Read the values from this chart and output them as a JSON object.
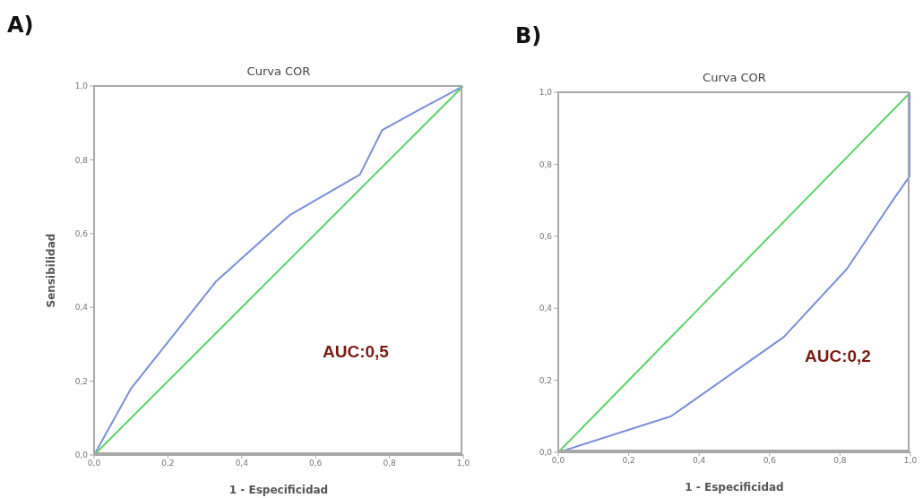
{
  "chart_data": [
    {
      "type": "line",
      "title": "Curva COR",
      "xlabel": "1 - Especificidad",
      "ylabel": "Sensibilidad",
      "annotations": [
        "A)",
        "AUC:0,5"
      ],
      "xlim": [
        0,
        1
      ],
      "ylim": [
        0,
        1
      ],
      "xticks": [
        {
          "value": 0,
          "label": "0,0"
        },
        {
          "value": 0.2,
          "label": "0,2"
        },
        {
          "value": 0.4,
          "label": "0,4"
        },
        {
          "value": 0.6,
          "label": "0,6"
        },
        {
          "value": 0.8,
          "label": "0,8"
        },
        {
          "value": 1,
          "label": "1,0"
        }
      ],
      "yticks": [
        {
          "value": 0,
          "label": "0,0"
        },
        {
          "value": 0.2,
          "label": "0,2"
        },
        {
          "value": 0.4,
          "label": "0,4"
        },
        {
          "value": 0.6,
          "label": "0,6"
        },
        {
          "value": 0.8,
          "label": "0,8"
        },
        {
          "value": 1,
          "label": "1,0"
        }
      ],
      "grid": false,
      "line_style": "solid",
      "series": [
        {
          "color": "#7b8fd8",
          "x": [
            0,
            0.1,
            0.33,
            0.53,
            0.72,
            0.78,
            0.87,
            1
          ],
          "values": [
            0,
            0.18,
            0.47,
            0.65,
            0.76,
            0.88,
            0.93,
            1
          ]
        },
        {
          "color": "#5fd36a",
          "x": [
            0,
            1
          ],
          "values": [
            0,
            1
          ]
        }
      ]
    },
    {
      "type": "line",
      "title": "Curva COR",
      "xlabel": "1 - Especificidad",
      "annotations": [
        "B)",
        "AUC:0,2"
      ],
      "xlim": [
        0,
        1
      ],
      "ylim": [
        0,
        1
      ],
      "xticks": [
        {
          "value": 0,
          "label": "0,0"
        },
        {
          "value": 0.2,
          "label": "0,2"
        },
        {
          "value": 0.4,
          "label": "0,4"
        },
        {
          "value": 0.6,
          "label": "0,6"
        },
        {
          "value": 0.8,
          "label": "0,8"
        },
        {
          "value": 1,
          "label": "1,0"
        }
      ],
      "yticks": [
        {
          "value": 0,
          "label": "0,0"
        },
        {
          "value": 0.2,
          "label": "0,2"
        },
        {
          "value": 0.4,
          "label": "0,4"
        },
        {
          "value": 0.6,
          "label": "0,6"
        },
        {
          "value": 0.8,
          "label": "0,8"
        },
        {
          "value": 1,
          "label": "1,0"
        }
      ],
      "grid": false,
      "line_style": "solid",
      "series": [
        {
          "color": "#7b8fd8",
          "x": [
            0,
            0.32,
            0.64,
            0.82,
            0.95,
            1,
            1
          ],
          "values": [
            0,
            0.1,
            0.32,
            0.51,
            0.7,
            0.77,
            1
          ]
        },
        {
          "color": "#5fd36a",
          "x": [
            0,
            1
          ],
          "values": [
            0,
            1
          ]
        }
      ]
    }
  ]
}
